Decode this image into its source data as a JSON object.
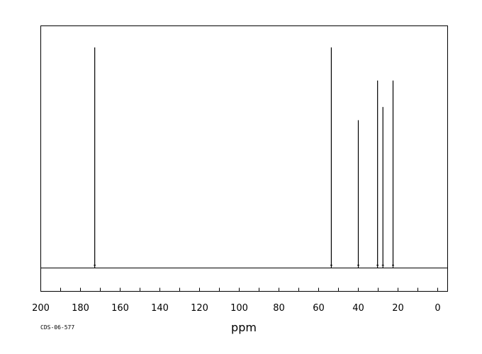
{
  "chart_data": {
    "type": "line",
    "title": "",
    "xlabel": "ppm",
    "ylabel": "",
    "xlim": [
      200,
      -5
    ],
    "x_reversed": true,
    "x_ticks_major": [
      200,
      180,
      160,
      140,
      120,
      100,
      80,
      60,
      40,
      20,
      0
    ],
    "x_tick_minor_step": 10,
    "grid": false,
    "legend": "none",
    "code": "CDS-06-577",
    "line_color": "#000000",
    "peaks": [
      {
        "ppm": 172.8,
        "intensity": 1.0
      },
      {
        "ppm": 53.6,
        "intensity": 1.0
      },
      {
        "ppm": 40.0,
        "intensity": 0.67
      },
      {
        "ppm": 30.3,
        "intensity": 0.85
      },
      {
        "ppm": 27.6,
        "intensity": 0.73
      },
      {
        "ppm": 22.5,
        "intensity": 0.85
      }
    ]
  }
}
